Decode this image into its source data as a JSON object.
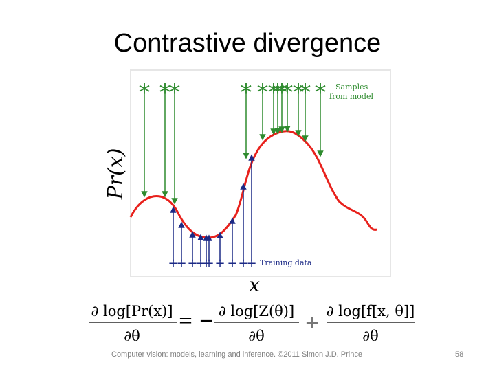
{
  "slide": {
    "title": "Contrastive divergence",
    "footer": "Computer vision: models, learning and inference.  ©2011 Simon J.D. Prince",
    "page_number": "58"
  },
  "figure": {
    "ylabel": "Pr(x)",
    "xlabel": "x",
    "samples_label_line1": "Samples",
    "samples_label_line2": "from model",
    "training_label": "Training data",
    "colors": {
      "curve": "#e8211c",
      "samples": "#2e8b2e",
      "training": "#1c2a86",
      "border": "#e6e6e6"
    }
  },
  "equation": {
    "lhs_numerator": "∂ log[Pr(x)]",
    "lhs_denominator": "∂θ",
    "equals": "= −",
    "term1_numerator": "∂ log[Z(θ)]",
    "term1_denominator": "∂θ",
    "plus": "+",
    "term2_numerator": "∂ log[f[x, θ]]",
    "term2_denominator": "∂θ"
  }
}
